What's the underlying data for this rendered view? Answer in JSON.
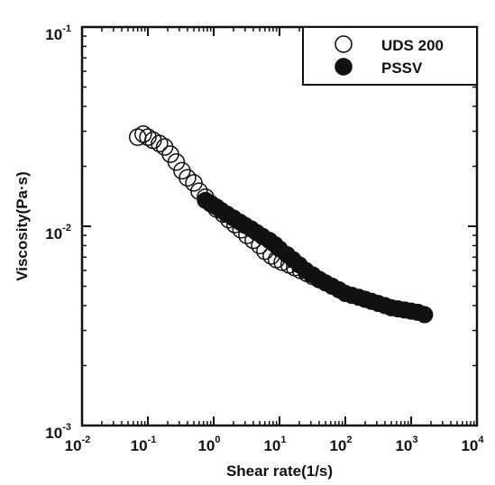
{
  "chart_data": {
    "type": "scatter",
    "xscale": "log",
    "yscale": "log",
    "xlim": [
      0.01,
      10000
    ],
    "ylim": [
      0.001,
      0.1
    ],
    "xlabel": "Shear rate(1/s)",
    "ylabel": "Viscosity(Pa·s)",
    "grid": false,
    "legend_position": "top-right",
    "x_ticks": [
      {
        "base": "10",
        "exp": "-2",
        "value": 0.01
      },
      {
        "base": "10",
        "exp": "-1",
        "value": 0.1
      },
      {
        "base": "10",
        "exp": "0",
        "value": 1
      },
      {
        "base": "10",
        "exp": "1",
        "value": 10
      },
      {
        "base": "10",
        "exp": "2",
        "value": 100
      },
      {
        "base": "10",
        "exp": "3",
        "value": 1000
      },
      {
        "base": "10",
        "exp": "4",
        "value": 10000
      }
    ],
    "y_ticks": [
      {
        "base": "10",
        "exp": "-3",
        "value": 0.001
      },
      {
        "base": "10",
        "exp": "-2",
        "value": 0.01
      },
      {
        "base": "10",
        "exp": "-1",
        "value": 0.1
      }
    ],
    "series": [
      {
        "name": "UDS 200",
        "marker": "open-circle",
        "color": "#000000",
        "x": [
          0.07,
          0.085,
          0.1,
          0.12,
          0.15,
          0.18,
          0.22,
          0.27,
          0.33,
          0.4,
          0.5,
          0.6,
          0.75,
          0.9,
          1.1,
          1.4,
          1.7,
          2.1,
          2.6,
          3.2,
          4,
          5,
          6,
          7.5,
          9,
          11,
          14,
          17,
          21,
          26,
          32,
          40
        ],
        "y": [
          0.028,
          0.029,
          0.028,
          0.027,
          0.026,
          0.025,
          0.023,
          0.021,
          0.019,
          0.0175,
          0.0165,
          0.015,
          0.014,
          0.013,
          0.0122,
          0.0115,
          0.0108,
          0.0102,
          0.0096,
          0.009,
          0.0085,
          0.008,
          0.0075,
          0.0071,
          0.0068,
          0.0066,
          0.0064,
          0.0062,
          0.006,
          0.0058,
          0.0056,
          0.0054
        ]
      },
      {
        "name": "PSSV",
        "marker": "filled-circle",
        "color": "#000000",
        "x": [
          0.75,
          0.9,
          1.1,
          1.3,
          1.6,
          2,
          2.5,
          3,
          3.7,
          4.5,
          5.5,
          7,
          8.5,
          10,
          13,
          16,
          20,
          25,
          32,
          40,
          50,
          63,
          80,
          100,
          126,
          160,
          200,
          250,
          316,
          400,
          500,
          630,
          800,
          1000,
          1260,
          1600
        ],
        "y": [
          0.0135,
          0.013,
          0.0125,
          0.012,
          0.0115,
          0.011,
          0.0105,
          0.0101,
          0.0097,
          0.0093,
          0.0089,
          0.0085,
          0.0081,
          0.0077,
          0.0072,
          0.0068,
          0.0064,
          0.006,
          0.0057,
          0.0054,
          0.0052,
          0.005,
          0.0048,
          0.0046,
          0.0045,
          0.0044,
          0.0043,
          0.0042,
          0.0041,
          0.004,
          0.0039,
          0.00385,
          0.0038,
          0.00375,
          0.0037,
          0.0036
        ]
      }
    ]
  }
}
